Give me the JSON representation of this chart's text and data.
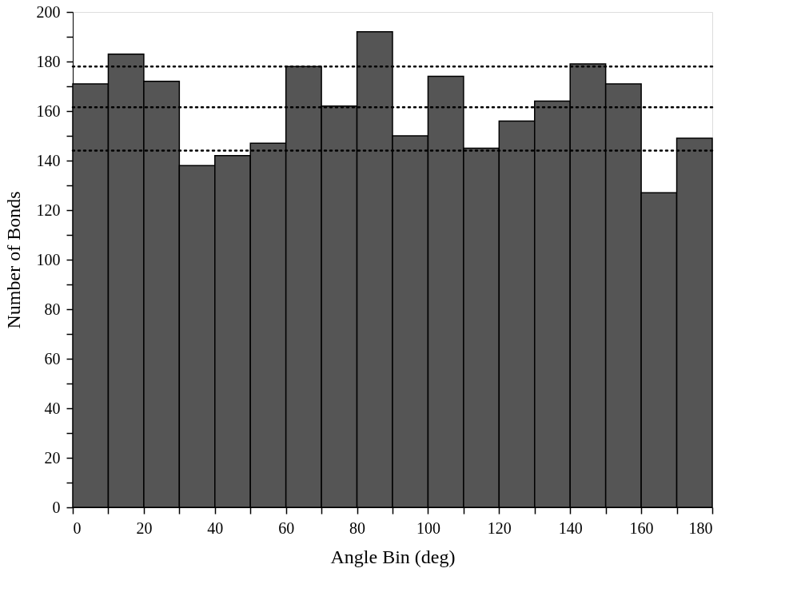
{
  "chart_data": {
    "type": "histogram",
    "xlabel": "Angle Bin (deg)",
    "ylabel": "Number of Bonds",
    "bins": [
      0,
      10,
      20,
      30,
      40,
      50,
      60,
      70,
      80,
      90,
      100,
      110,
      120,
      130,
      140,
      150,
      160,
      170,
      180
    ],
    "values": [
      171,
      183,
      172,
      138,
      142,
      147,
      178,
      162,
      192,
      150,
      174,
      145,
      156,
      164,
      179,
      171,
      127,
      149
    ],
    "color": "#555555",
    "xlim": [
      0,
      180
    ],
    "ylim": [
      0,
      200
    ],
    "xticks": [
      0,
      {
        "value": 10,
        "label": null
      },
      20,
      {
        "value": 30,
        "label": null
      },
      40,
      {
        "value": 50,
        "label": null
      },
      60,
      {
        "value": 70,
        "label": null
      },
      80,
      {
        "value": 90,
        "label": null
      },
      100,
      {
        "value": 110,
        "label": null
      },
      120,
      {
        "value": 130,
        "label": null
      },
      140,
      {
        "value": 150,
        "label": null
      },
      160,
      {
        "value": 170,
        "label": null
      },
      180
    ],
    "yticks": [
      0,
      {
        "value": 10,
        "label": null
      },
      20,
      {
        "value": 30,
        "label": null
      },
      40,
      {
        "value": 50,
        "label": null
      },
      60,
      {
        "value": 70,
        "label": null
      },
      80,
      {
        "value": 90,
        "label": null
      },
      100,
      {
        "value": 110,
        "label": null
      },
      120,
      {
        "value": 130,
        "label": null
      },
      140,
      {
        "value": 150,
        "label": null
      },
      160,
      {
        "value": 170,
        "label": null
      },
      180,
      {
        "value": 190,
        "label": null
      },
      200
    ],
    "ref_lines": [
      {
        "axis": "y",
        "value": 178,
        "line_style": "dotted",
        "color": "#000000"
      },
      {
        "axis": "y",
        "value": 161.5,
        "line_style": "dotted",
        "color": "#000000"
      },
      {
        "axis": "y",
        "value": 144,
        "line_style": "dotted",
        "color": "#000000"
      }
    ],
    "grid": false
  }
}
